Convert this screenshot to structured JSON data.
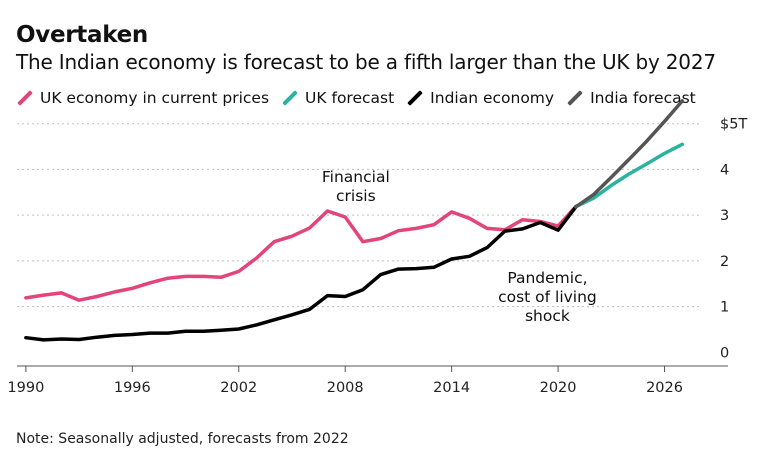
{
  "header": {
    "title": "Overtaken",
    "subtitle": "The Indian economy is forecast to be a fifth larger than the UK by 2027"
  },
  "legend": [
    {
      "label": "UK economy in current prices",
      "color": "#e3447a"
    },
    {
      "label": "UK forecast",
      "color": "#2ab3a0"
    },
    {
      "label": "Indian economy",
      "color": "#000000"
    },
    {
      "label": "India forecast",
      "color": "#555555"
    }
  ],
  "note": "Note: Seasonally adjusted, forecasts from 2022",
  "chart_data": {
    "type": "line",
    "title": "Overtaken",
    "subtitle": "The Indian economy is forecast to be a fifth larger than the UK by 2027",
    "xlabel": "",
    "ylabel": "",
    "xlim": [
      1989.5,
      2028
    ],
    "ylim": [
      -0.3,
      5.3
    ],
    "grid": true,
    "x_ticks": [
      1990,
      1996,
      2002,
      2008,
      2014,
      2020,
      2026
    ],
    "x_tick_labels": [
      "1990",
      "1996",
      "2002",
      "2008",
      "2014",
      "2020",
      "2026"
    ],
    "y_ticks": [
      0,
      1,
      2,
      3,
      4,
      5
    ],
    "y_tick_labels": [
      "0",
      "1",
      "2",
      "3",
      "4",
      "$5T"
    ],
    "series": [
      {
        "name": "UK economy in current prices",
        "color": "#e3447a",
        "x": [
          1990,
          1991,
          1992,
          1993,
          1994,
          1995,
          1996,
          1997,
          1998,
          1999,
          2000,
          2001,
          2002,
          2003,
          2004,
          2005,
          2006,
          2007,
          2008,
          2009,
          2010,
          2011,
          2012,
          2013,
          2014,
          2015,
          2016,
          2017,
          2018,
          2019,
          2020,
          2021
        ],
        "y": [
          1.19,
          1.25,
          1.3,
          1.14,
          1.22,
          1.32,
          1.4,
          1.52,
          1.62,
          1.66,
          1.66,
          1.64,
          1.77,
          2.06,
          2.42,
          2.54,
          2.72,
          3.09,
          2.96,
          2.42,
          2.49,
          2.66,
          2.71,
          2.79,
          3.07,
          2.93,
          2.71,
          2.68,
          2.9,
          2.86,
          2.76,
          3.19
        ]
      },
      {
        "name": "UK forecast",
        "color": "#2ab3a0",
        "x": [
          2021,
          2022,
          2023,
          2024,
          2025,
          2026,
          2027
        ],
        "y": [
          3.19,
          3.37,
          3.65,
          3.9,
          4.12,
          4.35,
          4.55
        ]
      },
      {
        "name": "Indian economy",
        "color": "#000000",
        "x": [
          1990,
          1991,
          1992,
          1993,
          1994,
          1995,
          1996,
          1997,
          1998,
          1999,
          2000,
          2001,
          2002,
          2003,
          2004,
          2005,
          2006,
          2007,
          2008,
          2009,
          2010,
          2011,
          2012,
          2013,
          2014,
          2015,
          2016,
          2017,
          2018,
          2019,
          2020,
          2021
        ],
        "y": [
          0.32,
          0.27,
          0.29,
          0.28,
          0.33,
          0.37,
          0.39,
          0.42,
          0.42,
          0.46,
          0.46,
          0.48,
          0.51,
          0.6,
          0.71,
          0.82,
          0.94,
          1.24,
          1.22,
          1.37,
          1.7,
          1.82,
          1.83,
          1.86,
          2.04,
          2.1,
          2.29,
          2.65,
          2.7,
          2.84,
          2.67,
          3.18
        ]
      },
      {
        "name": "India forecast",
        "color": "#555555",
        "x": [
          2021,
          2022,
          2023,
          2024,
          2025,
          2026,
          2027
        ],
        "y": [
          3.18,
          3.45,
          3.83,
          4.22,
          4.62,
          5.05,
          5.5
        ]
      }
    ],
    "annotations": [
      {
        "x": 2008.6,
        "y": 3.72,
        "lines": [
          "Financial",
          "crisis"
        ]
      },
      {
        "x": 2019.4,
        "y": 1.52,
        "lines": [
          "Pandemic,",
          "cost of living",
          "shock"
        ]
      }
    ]
  }
}
